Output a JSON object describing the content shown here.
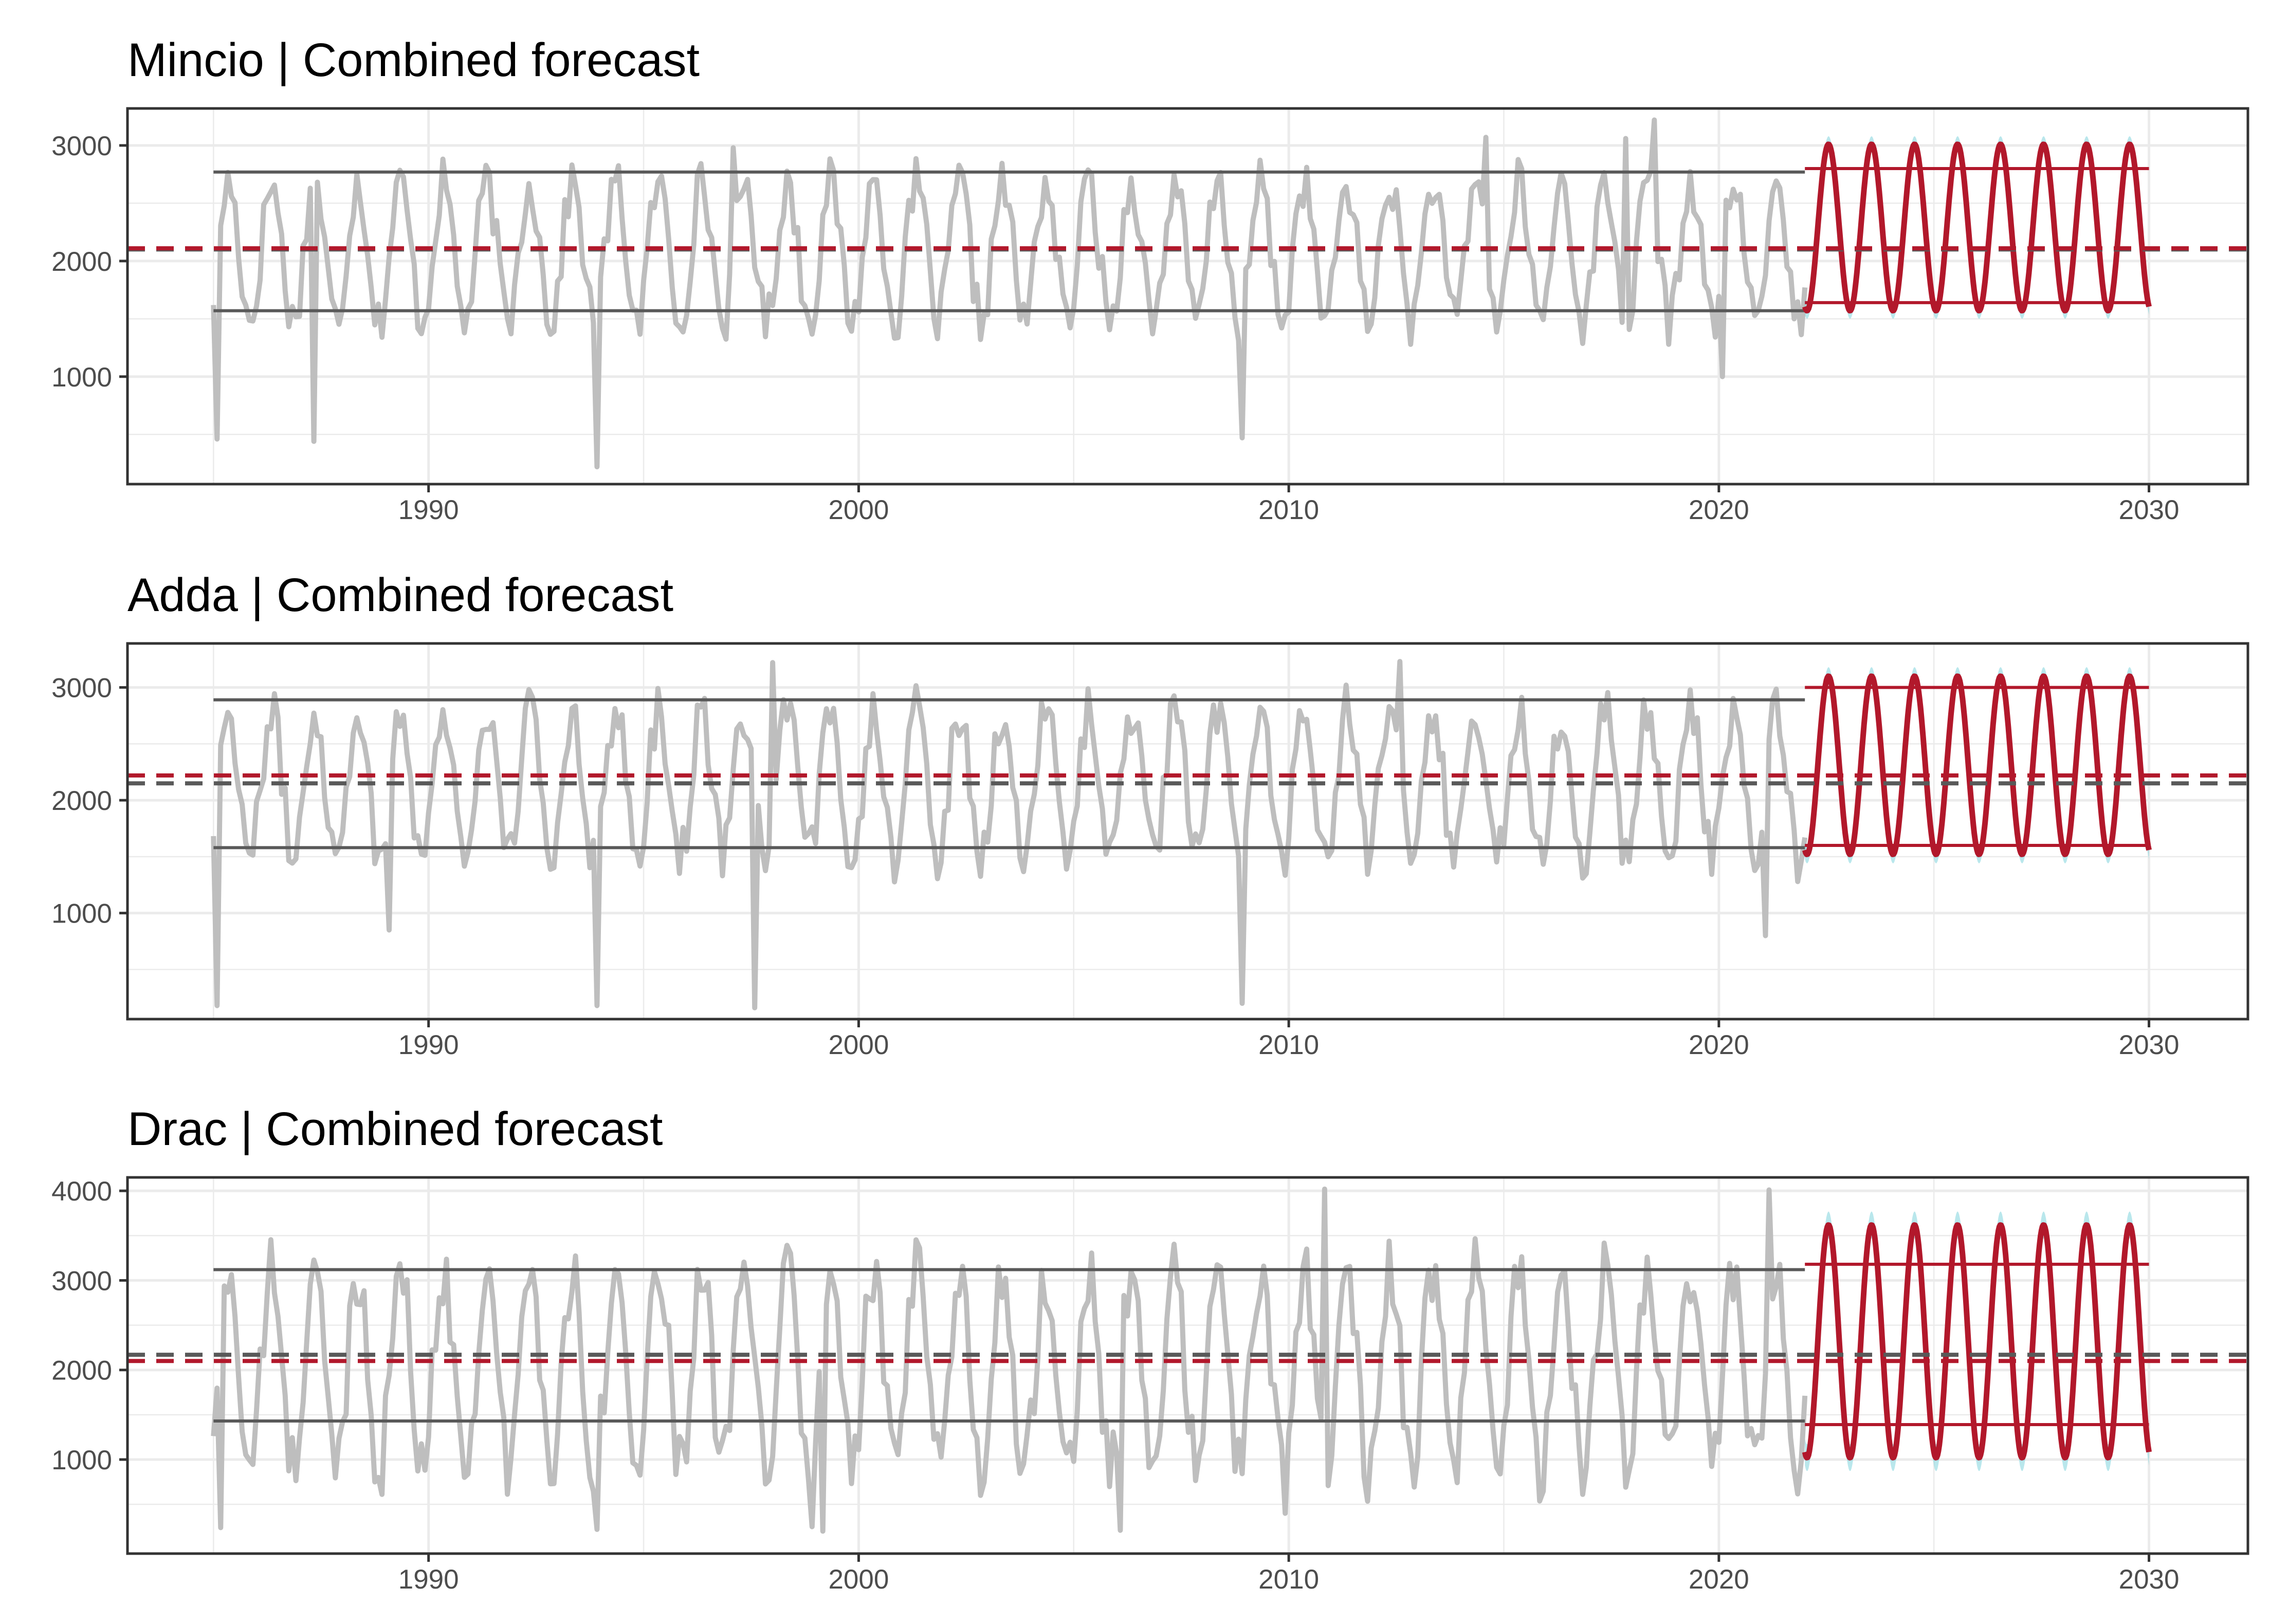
{
  "figure": {
    "background": "#ffffff",
    "grid_color": "#ebebeb",
    "observed_color": "#bebebe",
    "forecast_color": "#b2182b",
    "band_color": "#7fd3dd",
    "reference_line_color": "#595959",
    "axis_text_color": "#4d4d4d"
  },
  "chart_data": [
    {
      "type": "line",
      "title": "Mincio | Combined forecast",
      "xlim": [
        1983,
        2032.3
      ],
      "ylim": [
        70,
        3320
      ],
      "x_ticks": [
        1990,
        2000,
        2010,
        2020,
        2030
      ],
      "y_ticks": [
        1000,
        2000,
        3000
      ],
      "xlabel": "",
      "ylabel": "",
      "observed": {
        "name": "Observed monthly series",
        "start": 1985.0,
        "end": 2022.0,
        "base": 2080,
        "seasonal_amplitude": 600,
        "extremes": [
          [
            1985.1,
            460
          ],
          [
            1987.3,
            440
          ],
          [
            1993.9,
            220
          ],
          [
            2008.9,
            470
          ],
          [
            2018.5,
            3220
          ],
          [
            2017.8,
            3060
          ],
          [
            2014.6,
            3070
          ],
          [
            2020.1,
            1000
          ],
          [
            1997.1,
            2980
          ]
        ]
      },
      "observed_mean": 2100,
      "observed_high": 2770,
      "observed_low": 1570,
      "forecast": {
        "name": "Combined forecast",
        "start": 2022.0,
        "end": 2030.0,
        "mean": 2290,
        "amplitude": 720,
        "band": 70
      },
      "forecast_mean": 2110,
      "forecast_high": 2800,
      "forecast_low": 1640
    },
    {
      "type": "line",
      "title": "Adda | Combined forecast",
      "xlim": [
        1983,
        2032.3
      ],
      "ylim": [
        60,
        3390
      ],
      "x_ticks": [
        1990,
        2000,
        2010,
        2020,
        2030
      ],
      "y_ticks": [
        1000,
        2000,
        3000
      ],
      "xlabel": "",
      "ylabel": "",
      "observed": {
        "name": "Observed monthly series",
        "start": 1985.0,
        "end": 2022.0,
        "base": 2150,
        "seasonal_amplitude": 650,
        "extremes": [
          [
            1985.1,
            180
          ],
          [
            1993.9,
            180
          ],
          [
            1997.6,
            160
          ],
          [
            2008.9,
            200
          ],
          [
            2012.6,
            3230
          ],
          [
            1998.0,
            3220
          ],
          [
            2021.1,
            800
          ],
          [
            1989.1,
            850
          ]
        ]
      },
      "observed_mean": 2150,
      "observed_high": 2890,
      "observed_low": 1580,
      "forecast": {
        "name": "Combined forecast",
        "start": 2022.0,
        "end": 2030.0,
        "mean": 2310,
        "amplitude": 790,
        "band": 80
      },
      "forecast_mean": 2220,
      "forecast_high": 3000,
      "forecast_low": 1600
    },
    {
      "type": "line",
      "title": "Drac | Combined forecast",
      "xlim": [
        1983,
        2032.3
      ],
      "ylim": [
        -50,
        4150
      ],
      "x_ticks": [
        1990,
        2000,
        2010,
        2020,
        2030
      ],
      "y_ticks": [
        1000,
        2000,
        3000,
        4000
      ],
      "xlabel": "",
      "ylabel": "",
      "observed": {
        "name": "Observed monthly series",
        "start": 1985.0,
        "end": 2022.0,
        "base": 2000,
        "seasonal_amplitude": 1100,
        "extremes": [
          [
            1985.2,
            240
          ],
          [
            1993.9,
            220
          ],
          [
            1999.2,
            200
          ],
          [
            2006.1,
            210
          ],
          [
            2009.9,
            400
          ],
          [
            2010.8,
            4020
          ],
          [
            2021.2,
            4010
          ],
          [
            1998.9,
            250
          ]
        ]
      },
      "observed_mean": 2170,
      "observed_high": 3120,
      "observed_low": 1430,
      "forecast": {
        "name": "Combined forecast",
        "start": 2022.0,
        "end": 2030.0,
        "mean": 2320,
        "amplitude": 1300,
        "band": 150
      },
      "forecast_mean": 2100,
      "forecast_high": 3180,
      "forecast_low": 1390
    }
  ]
}
